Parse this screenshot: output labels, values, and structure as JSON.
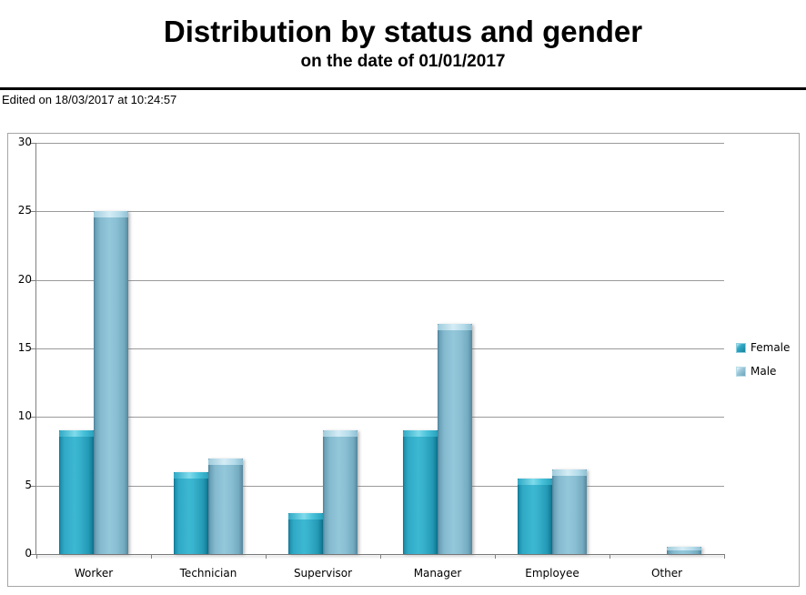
{
  "header": {
    "title": "Distribution by status and gender",
    "subtitle": "on the date of 01/01/2017",
    "edited_note": "Edited on 18/03/2017 at 10:24:57"
  },
  "legend": {
    "entries": [
      {
        "label": "Female",
        "color": "#29a3c0"
      },
      {
        "label": "Male",
        "color": "#8bbfd4"
      }
    ]
  },
  "chart_data": {
    "type": "bar",
    "title": "Distribution by status and gender",
    "subtitle": "on the date of 01/01/2017",
    "categories": [
      "Worker",
      "Technician",
      "Supervisor",
      "Manager",
      "Employee",
      "Other"
    ],
    "series": [
      {
        "name": "Female",
        "color": "#29a3c0",
        "values": [
          9,
          6,
          3,
          9,
          5.5,
          0
        ]
      },
      {
        "name": "Male",
        "color": "#8bbfd4",
        "values": [
          25,
          7,
          9,
          16.8,
          6.2,
          0.5
        ]
      }
    ],
    "xlabel": "",
    "ylabel": "",
    "ylim": [
      0,
      30
    ],
    "ytick_step": 5,
    "ytick_labels": [
      "0",
      "5",
      "10",
      "15",
      "20",
      "25",
      "30"
    ],
    "grid": true,
    "legend_position": "right"
  }
}
